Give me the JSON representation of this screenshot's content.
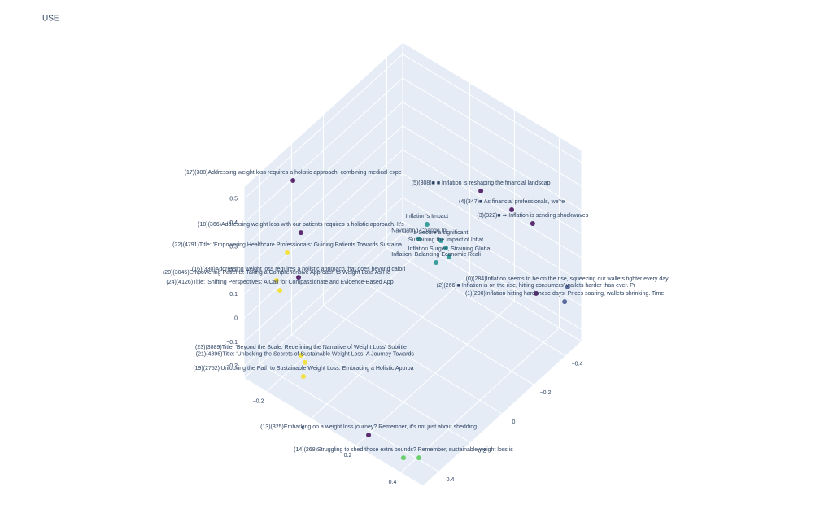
{
  "chart_data": {
    "type": "scatter3d",
    "title": "USE",
    "xlim": [
      -0.3,
      0.5
    ],
    "ylim": [
      -0.5,
      0.5
    ],
    "zlim": [
      -0.25,
      0.55
    ],
    "xticks": [
      {
        "value": -0.2,
        "label": "−0.2"
      },
      0,
      0.2,
      0.4
    ],
    "yticks": [
      {
        "value": -0.4,
        "label": "−0.4"
      },
      {
        "value": -0.2,
        "label": "−0.2"
      },
      0,
      0.2,
      0.4
    ],
    "zticks": [
      {
        "value": -0.2,
        "label": "−0.2"
      },
      {
        "value": -0.1,
        "label": "−0.1"
      },
      0,
      0.1,
      0.2,
      0.3,
      0.4,
      0.5
    ],
    "grid": true,
    "x": [
      -0.272,
      0.236,
      0.318,
      0.387,
      -0.238,
      -0.243,
      -0.225,
      -0.247,
      -0.237,
      0.405,
      0.471,
      0.478,
      0.077,
      0.098,
      0.162,
      0.197,
      0.232,
      0.214,
      -0.186,
      -0.154,
      -0.117,
      0.214,
      0.375,
      0.417
    ],
    "y": [
      0.231,
      -0.237,
      -0.316,
      -0.351,
      0.229,
      0.308,
      0.262,
      0.37,
      0.363,
      -0.347,
      -0.453,
      -0.424,
      -0.122,
      -0.041,
      -0.089,
      -0.071,
      -0.042,
      0.014,
      0.302,
      0.322,
      0.384,
      0.44,
      0.447,
      0.408
    ],
    "z": [
      0.43,
      0.39,
      0.31,
      0.27,
      0.23,
      0.19,
      0.07,
      0.11,
      0.07,
      -0.01,
      -0.01,
      -0.05,
      0.23,
      0.23,
      0.23,
      0.23,
      0.23,
      0.23,
      -0.21,
      -0.21,
      -0.21,
      -0.234,
      -0.234,
      -0.234
    ],
    "colors": [
      "#5b2c6f",
      "#5b2c6f",
      "#5b2c6f",
      "#5b2c6f",
      "#5b2c6f",
      "#f3e142",
      "#5b2c6f",
      "#f3e142",
      "#f3e142",
      "#5b2c6f",
      "#5a6a9c",
      "#5a6a9c",
      "#3a9f9c",
      "#3a9f9c",
      "#3a9f9c",
      "#3a9f9c",
      "#3a9f9c",
      "#3a9f9c",
      "#f3e142",
      "#f3e142",
      "#f3e142",
      "#5b2c6f",
      "#6ccf6d",
      "#6ccf6d"
    ],
    "text": [
      "(17)(388)Addressing weight loss requires a holistic approach, combining medical expe",
      "(5)(308)■ ■ Inflation is reshaping the financial landscap",
      "(4)(347)■ As financial professionals, we're",
      "(3)(322)■ ➡ Inflation is sending shockwaves",
      "(18)(366)Addressing weight loss with our patients requires a holistic approach. It's",
      "(22)(4791)Title: 'Empowering Healthcare Professionals: Guiding Patients Towards Sustaina",
      "(16)(330)Addressing weight loss requires a holistic approach that goes beyond calori",
      "(20)(3045)Empowering Patients: Taking a Comprehensive Approach to Weight Loss As He",
      "(24)(4126)Title: 'Shifting Perspectives: A Call for Compassionate and Evidence-Based App",
      "(2)(266)■ Inflation is on the rise, hitting consumers' wallets harder than ever. Pr",
      "(0)(284)Inflation seems to be on the rise, squeezing our wallets tighter every day.",
      "(1)(200)Inflation hitting hard these days! Prices soaring, wallets shrinking. Time",
      "Inflation's Impact",
      "Navigating Change In",
      "a Secure a significant",
      "Sustaining the Impact of Inflat",
      "Inflation Surges, Straining Globa",
      "Inflation: Balancing Economic Reali",
      "(23)(3889)Title: 'Beyond the Scale: Redefining the Narrative of Weight Loss' Subtitle",
      "(21)(4396)Title: 'Unlocking the Secrets of Sustainable Weight Loss: A Journey Towards",
      "(19)(2752)'Unlocking the Path to Sustainable Weight Loss: Embracing a Holistic Approa",
      "(13)(325)Embarking on a weight loss journey? Remember, it's not just about shedding",
      "(14)(268)Struggling to shed those extra pounds? Remember, sustainable weight loss is",
      null
    ]
  }
}
